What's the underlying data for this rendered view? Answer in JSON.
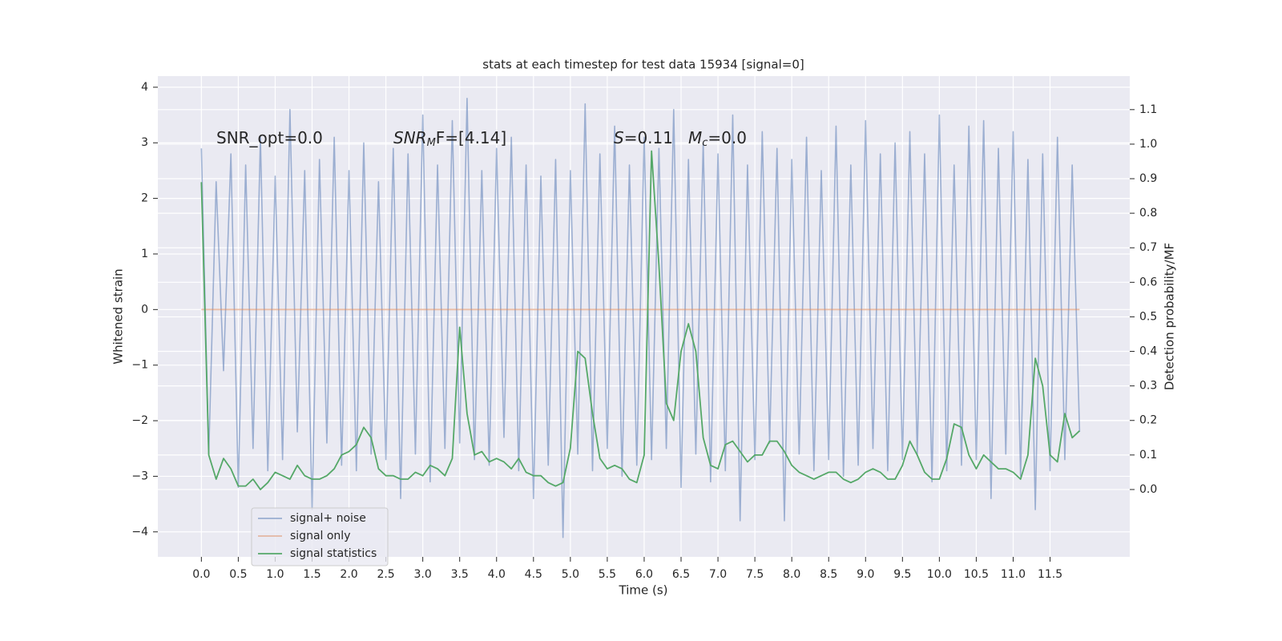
{
  "chart_data": {
    "type": "line",
    "title": "stats at each timestep for test data 15934 [signal=0]",
    "xlabel": "Time (s)",
    "ylabel": "Whitened strain",
    "y2label": "Detection probability/MF",
    "annotations": [
      {
        "parts": [
          {
            "text": "SNR_opt=0.0",
            "italic": false
          }
        ]
      },
      {
        "parts": [
          {
            "text": "SNR",
            "italic": true
          },
          {
            "text": "M",
            "italic": true,
            "sub": true
          },
          {
            "text": "F=[4.14]",
            "italic": false
          }
        ]
      },
      {
        "parts": [
          {
            "text": "S",
            "italic": true
          },
          {
            "text": "=0.11",
            "italic": false
          }
        ]
      },
      {
        "parts": [
          {
            "text": "M",
            "italic": true
          },
          {
            "text": "c",
            "italic": true,
            "sub": true
          },
          {
            "text": "=0.0",
            "italic": false
          }
        ]
      }
    ],
    "x": [
      0.0,
      0.1,
      0.2,
      0.3,
      0.4,
      0.5,
      0.6,
      0.7,
      0.8,
      0.9,
      1.0,
      1.1,
      1.2,
      1.3,
      1.4,
      1.5,
      1.6,
      1.7,
      1.8,
      1.9,
      2.0,
      2.1,
      2.2,
      2.3,
      2.4,
      2.5,
      2.6,
      2.7,
      2.8,
      2.9,
      3.0,
      3.1,
      3.2,
      3.3,
      3.4,
      3.5,
      3.6,
      3.7,
      3.8,
      3.9,
      4.0,
      4.1,
      4.2,
      4.3,
      4.4,
      4.5,
      4.6,
      4.7,
      4.8,
      4.9,
      5.0,
      5.1,
      5.2,
      5.3,
      5.4,
      5.5,
      5.6,
      5.7,
      5.8,
      5.9,
      6.0,
      6.1,
      6.2,
      6.3,
      6.4,
      6.5,
      6.6,
      6.7,
      6.8,
      6.9,
      7.0,
      7.1,
      7.2,
      7.3,
      7.4,
      7.5,
      7.6,
      7.7,
      7.8,
      7.9,
      8.0,
      8.1,
      8.2,
      8.3,
      8.4,
      8.5,
      8.6,
      8.7,
      8.8,
      8.9,
      9.0,
      9.1,
      9.2,
      9.3,
      9.4,
      9.5,
      9.6,
      9.7,
      9.8,
      9.9,
      10.0,
      10.1,
      10.2,
      10.3,
      10.4,
      10.5,
      10.6,
      10.7,
      10.8,
      10.9,
      11.0,
      11.1,
      11.2,
      11.3,
      11.4,
      11.5,
      11.6,
      11.7,
      11.8,
      11.9
    ],
    "series": [
      {
        "name": "signal+ noise",
        "color": "#4c72b0",
        "opacity": 0.5,
        "values": [
          2.9,
          -2.6,
          2.3,
          -1.1,
          2.8,
          -3.2,
          2.6,
          -2.5,
          3.1,
          -2.9,
          2.4,
          -2.7,
          3.6,
          -2.2,
          2.5,
          -3.6,
          2.7,
          -2.4,
          3.1,
          -2.8,
          2.5,
          -2.9,
          3.0,
          -2.6,
          2.3,
          -2.7,
          2.9,
          -3.4,
          2.8,
          -2.6,
          3.5,
          -3.1,
          2.6,
          -2.5,
          3.4,
          -2.4,
          3.8,
          -2.7,
          2.5,
          -2.8,
          2.9,
          -2.3,
          3.1,
          -2.9,
          2.6,
          -3.4,
          2.4,
          -2.8,
          2.7,
          -4.1,
          2.5,
          -2.6,
          3.7,
          -2.9,
          2.8,
          -2.5,
          3.3,
          -3.0,
          2.6,
          -2.8,
          3.1,
          -2.7,
          2.9,
          -2.5,
          3.6,
          -3.2,
          2.7,
          -2.6,
          3.0,
          -3.1,
          2.8,
          -2.9,
          3.5,
          -3.8,
          2.6,
          -2.7,
          3.2,
          -2.4,
          2.9,
          -3.8,
          2.7,
          -2.6,
          3.1,
          -2.9,
          2.5,
          -2.7,
          3.3,
          -3.0,
          2.6,
          -2.8,
          3.4,
          -2.5,
          2.8,
          -2.9,
          3.0,
          -2.7,
          3.2,
          -2.6,
          2.8,
          -3.1,
          3.5,
          -2.9,
          2.6,
          -2.8,
          3.3,
          -2.7,
          3.4,
          -3.4,
          2.9,
          -2.6,
          3.2,
          -3.0,
          2.7,
          -3.6,
          2.8,
          -2.9,
          3.1,
          -2.7,
          2.6,
          -2.2
        ]
      },
      {
        "name": "signal only",
        "color": "#dd8452",
        "opacity": 0.5,
        "values": [
          0,
          0,
          0,
          0,
          0,
          0,
          0,
          0,
          0,
          0,
          0,
          0,
          0,
          0,
          0,
          0,
          0,
          0,
          0,
          0,
          0,
          0,
          0,
          0,
          0,
          0,
          0,
          0,
          0,
          0,
          0,
          0,
          0,
          0,
          0,
          0,
          0,
          0,
          0,
          0,
          0,
          0,
          0,
          0,
          0,
          0,
          0,
          0,
          0,
          0,
          0,
          0,
          0,
          0,
          0,
          0,
          0,
          0,
          0,
          0,
          0,
          0,
          0,
          0,
          0,
          0,
          0,
          0,
          0,
          0,
          0,
          0,
          0,
          0,
          0,
          0,
          0,
          0,
          0,
          0,
          0,
          0,
          0,
          0,
          0,
          0,
          0,
          0,
          0,
          0,
          0,
          0,
          0,
          0,
          0,
          0,
          0,
          0,
          0,
          0,
          0,
          0,
          0,
          0,
          0,
          0,
          0,
          0,
          0,
          0,
          0,
          0,
          0,
          0,
          0,
          0,
          0,
          0,
          0,
          0
        ]
      },
      {
        "name": "signal statistics",
        "color": "#55a868",
        "opacity": 1,
        "axis": "y2",
        "values": [
          0.89,
          0.1,
          0.03,
          0.09,
          0.06,
          0.01,
          0.01,
          0.03,
          0.0,
          0.02,
          0.05,
          0.04,
          0.03,
          0.07,
          0.04,
          0.03,
          0.03,
          0.04,
          0.06,
          0.1,
          0.11,
          0.13,
          0.18,
          0.15,
          0.06,
          0.04,
          0.04,
          0.03,
          0.03,
          0.05,
          0.04,
          0.07,
          0.06,
          0.04,
          0.09,
          0.47,
          0.22,
          0.1,
          0.11,
          0.08,
          0.09,
          0.08,
          0.06,
          0.09,
          0.05,
          0.04,
          0.04,
          0.02,
          0.01,
          0.02,
          0.12,
          0.4,
          0.38,
          0.22,
          0.09,
          0.06,
          0.07,
          0.06,
          0.03,
          0.02,
          0.1,
          0.98,
          0.65,
          0.25,
          0.2,
          0.4,
          0.48,
          0.4,
          0.15,
          0.07,
          0.06,
          0.13,
          0.14,
          0.11,
          0.08,
          0.1,
          0.1,
          0.14,
          0.14,
          0.11,
          0.07,
          0.05,
          0.04,
          0.03,
          0.04,
          0.05,
          0.05,
          0.03,
          0.02,
          0.03,
          0.05,
          0.06,
          0.05,
          0.03,
          0.03,
          0.07,
          0.14,
          0.1,
          0.05,
          0.03,
          0.03,
          0.09,
          0.19,
          0.18,
          0.1,
          0.06,
          0.1,
          0.08,
          0.06,
          0.06,
          0.05,
          0.03,
          0.1,
          0.38,
          0.3,
          0.1,
          0.08,
          0.22,
          0.15,
          0.17
        ]
      }
    ],
    "xlim": [
      -0.59,
      12.58
    ],
    "ylim": [
      -4.45,
      4.2
    ],
    "y2lim": [
      -0.195,
      1.197
    ],
    "xticks": [
      {
        "value": 0,
        "label": "0.0"
      },
      0.5,
      {
        "value": 1,
        "label": "1.0"
      },
      1.5,
      {
        "value": 2,
        "label": "2.0"
      },
      2.5,
      {
        "value": 3,
        "label": "3.0"
      },
      3.5,
      {
        "value": 4,
        "label": "4.0"
      },
      4.5,
      {
        "value": 5,
        "label": "5.0"
      },
      5.5,
      {
        "value": 6,
        "label": "6.0"
      },
      6.5,
      {
        "value": 7,
        "label": "7.0"
      },
      7.5,
      {
        "value": 8,
        "label": "8.0"
      },
      8.5,
      {
        "value": 9,
        "label": "9.0"
      },
      9.5,
      {
        "value": 10,
        "label": "10.0"
      },
      10.5,
      {
        "value": 11,
        "label": "11.0"
      },
      11.5
    ],
    "yticks": [
      {
        "value": -4,
        "label": "−4"
      },
      {
        "value": -3,
        "label": "−3"
      },
      {
        "value": -2,
        "label": "−2"
      },
      {
        "value": -1,
        "label": "−1"
      },
      0,
      1,
      2,
      3,
      4
    ],
    "y2ticks": [
      {
        "value": 0,
        "label": "0.0"
      },
      0.1,
      0.2,
      0.3,
      0.4,
      0.5,
      0.6,
      0.7,
      0.8,
      0.9,
      {
        "value": 1,
        "label": "1.0"
      },
      1.1
    ],
    "grid": true,
    "legend": "lower left"
  }
}
